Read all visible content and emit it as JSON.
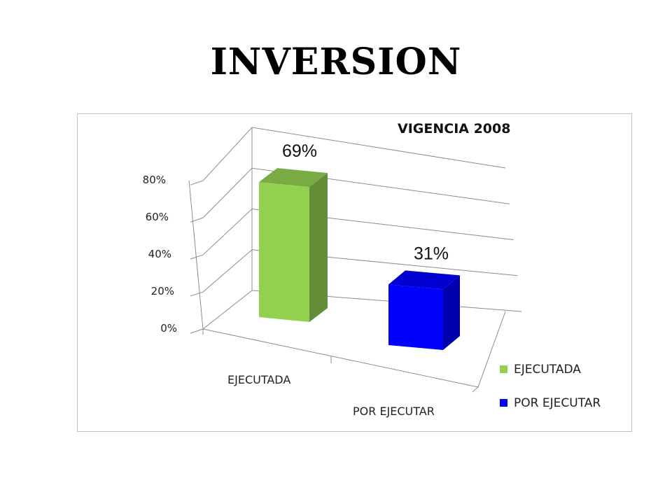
{
  "page": {
    "title": "INVERSION"
  },
  "chart_data": {
    "type": "bar",
    "title": "VIGENCIA 2008",
    "categories": [
      "EJECUTADA",
      "POR EJECUTAR"
    ],
    "values": [
      69,
      31
    ],
    "data_labels": [
      "69%",
      "31%"
    ],
    "colors": [
      "#92d050",
      "#0000ff"
    ],
    "y_ticks": [
      "0%",
      "20%",
      "40%",
      "60%",
      "80%"
    ],
    "ylim": [
      0,
      80
    ],
    "grid": true,
    "style": "3d-column",
    "legend": {
      "placement": "right",
      "entries": [
        {
          "label": "EJECUTADA",
          "color": "#92d050"
        },
        {
          "label": "POR EJECUTAR",
          "color": "#0000ff"
        }
      ]
    }
  }
}
